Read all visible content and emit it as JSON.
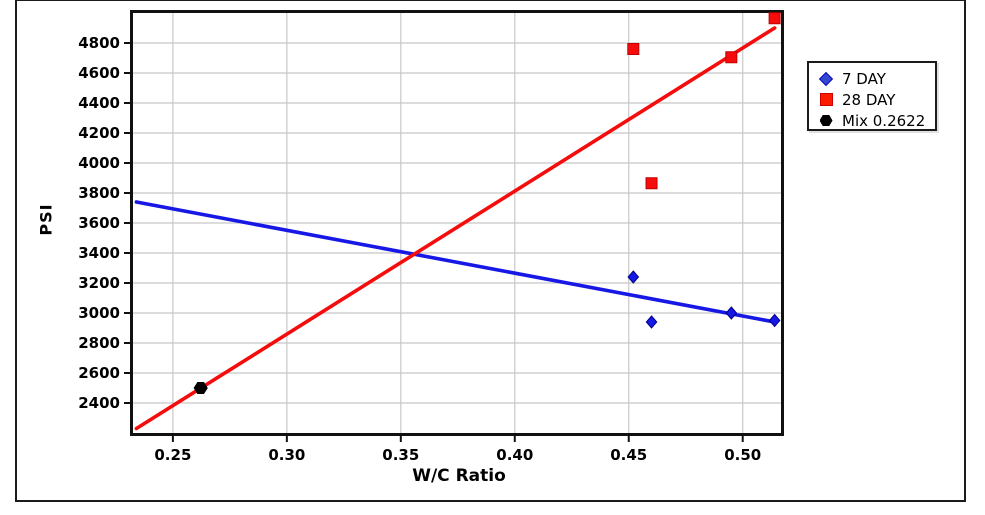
{
  "chart_data": {
    "type": "scatter",
    "title": "",
    "xlabel": "W/C Ratio",
    "ylabel": "PSI",
    "x_ticks": [
      "0.25",
      "0.30",
      "0.35",
      "0.40",
      "0.45",
      "0.50"
    ],
    "y_ticks": [
      2400,
      2600,
      2800,
      3000,
      3200,
      3400,
      3600,
      3800,
      4000,
      4200,
      4400,
      4600,
      4800
    ],
    "x_range": [
      0.2325,
      0.5168
    ],
    "y_range": [
      2200,
      5000
    ],
    "grid": true,
    "legend_position": "outside-right",
    "series": [
      {
        "name": "7 DAY",
        "marker": "diamond",
        "color": "#1717e6",
        "edge_color": "#00008b",
        "points": [
          [
            0.452,
            3240
          ],
          [
            0.46,
            2940
          ],
          [
            0.495,
            3000
          ],
          [
            0.514,
            2950
          ]
        ],
        "trendline": [
          [
            0.234,
            3740
          ],
          [
            0.514,
            2940
          ]
        ]
      },
      {
        "name": "28 DAY",
        "marker": "square",
        "color": "#f50c0c",
        "edge_color": "#c00000",
        "points": [
          [
            0.452,
            4760
          ],
          [
            0.46,
            3865
          ],
          [
            0.495,
            4705
          ],
          [
            0.514,
            4965
          ]
        ],
        "trendline": [
          [
            0.234,
            2230
          ],
          [
            0.514,
            4900
          ]
        ]
      },
      {
        "name": "Mix 0.2622",
        "marker": "hexagon",
        "color": "#000000",
        "edge_color": "#000000",
        "points": [
          [
            0.2622,
            2500
          ]
        ],
        "trendline": null
      }
    ],
    "colors": {
      "grid": "#c8c8c8",
      "frame": "#111111",
      "text": "#000000"
    }
  }
}
